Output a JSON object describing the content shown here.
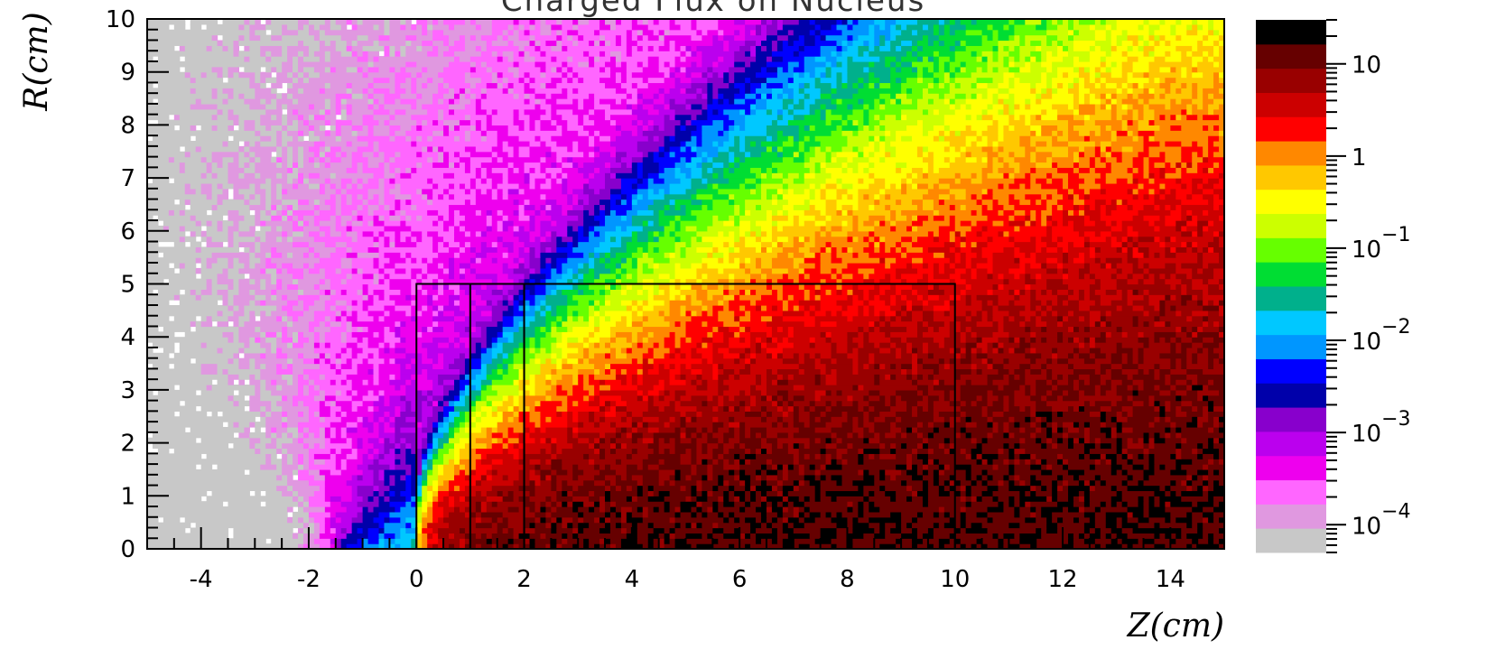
{
  "chart_data": {
    "type": "heatmap",
    "title": "Charged Flux on Nucleus",
    "xlabel": "Z(cm)",
    "ylabel": "R(cm)",
    "xlim": [
      -5,
      15
    ],
    "ylim": [
      0,
      10
    ],
    "x_ticks": [
      "-4",
      "-2",
      "0",
      "2",
      "4",
      "6",
      "8",
      "10",
      "12",
      "14"
    ],
    "x_tick_values": [
      -4,
      -2,
      0,
      2,
      4,
      6,
      8,
      10,
      12,
      14
    ],
    "y_ticks": [
      "0",
      "1",
      "2",
      "3",
      "4",
      "5",
      "6",
      "7",
      "8",
      "9",
      "10"
    ],
    "y_tick_values": [
      0,
      1,
      2,
      3,
      4,
      5,
      6,
      7,
      8,
      9,
      10
    ],
    "z_scale": "log",
    "z_range": [
      5e-05,
      30
    ],
    "colorbar_labels": [
      {
        "base": "10",
        "exp": "",
        "value": 10
      },
      {
        "base": "1",
        "exp": "",
        "value": 1
      },
      {
        "base": "10",
        "exp": "−1",
        "value": 0.1
      },
      {
        "base": "10",
        "exp": "−2",
        "value": 0.01
      },
      {
        "base": "10",
        "exp": "−3",
        "value": 0.001
      },
      {
        "base": "10",
        "exp": "−4",
        "value": 0.0001
      }
    ],
    "palette": [
      "#c8c8c8",
      "#e098e0",
      "#ff66ff",
      "#ee00ee",
      "#bb00ee",
      "#8800cc",
      "#0000aa",
      "#0000ff",
      "#0096ff",
      "#00c8ff",
      "#00b08c",
      "#00dd33",
      "#66ff00",
      "#ccff00",
      "#ffff00",
      "#ffc800",
      "#ff8800",
      "#ff0000",
      "#cc0000",
      "#990000",
      "#660000",
      "#000000"
    ],
    "regions": [
      {
        "z": [
          0,
          1
        ],
        "r": [
          0,
          5
        ]
      },
      {
        "z": [
          1,
          2
        ],
        "r": [
          0,
          5
        ]
      },
      {
        "z": [
          2,
          10
        ],
        "r": [
          0,
          5
        ]
      }
    ],
    "grid": false,
    "legend": "colorbar-right"
  }
}
